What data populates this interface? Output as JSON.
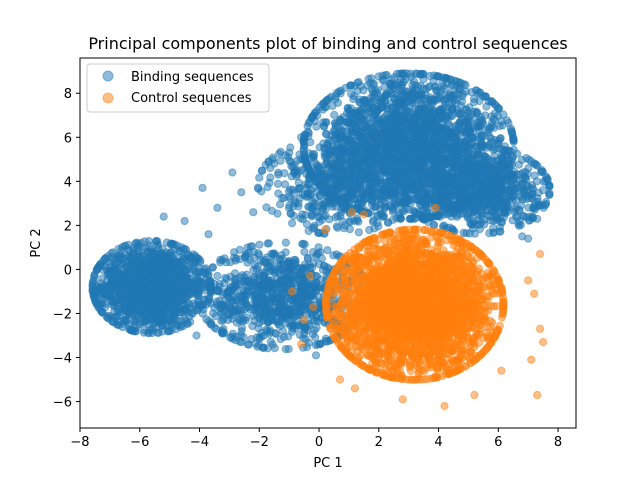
{
  "chart_data": {
    "type": "scatter",
    "title": "Principal components plot of binding and control sequences",
    "xlabel": "PC 1",
    "ylabel": "PC 2",
    "xlim": [
      -8,
      8.6
    ],
    "ylim": [
      -7.2,
      9.6
    ],
    "xticks": [
      -8,
      -6,
      -4,
      -2,
      0,
      2,
      4,
      6,
      8
    ],
    "yticks": [
      -6,
      -4,
      -2,
      0,
      2,
      4,
      6,
      8
    ],
    "grid": false,
    "legend_position": "top-left",
    "series": [
      {
        "name": "Binding sequences",
        "color": "#1f77b4",
        "opacity": 0.5,
        "clusters": [
          {
            "cx": -5.6,
            "cy": -0.8,
            "sx": 0.9,
            "sy": 0.95,
            "n": 1400
          },
          {
            "cx": -1.2,
            "cy": -1.2,
            "sx": 1.3,
            "sy": 1.1,
            "n": 900
          },
          {
            "cx": 3.0,
            "cy": 5.6,
            "sx": 1.6,
            "sy": 1.5,
            "n": 2200
          },
          {
            "cx": 5.3,
            "cy": 3.6,
            "sx": 1.1,
            "sy": 0.9,
            "n": 800
          },
          {
            "cx": 0.6,
            "cy": 3.8,
            "sx": 1.2,
            "sy": 1.0,
            "n": 500
          }
        ],
        "scatter_points": [
          [
            -3.9,
            3.7
          ],
          [
            -2.9,
            4.4
          ],
          [
            -2.6,
            3.5
          ],
          [
            -1.5,
            4.8
          ],
          [
            -1.0,
            5.3
          ],
          [
            -0.6,
            6.0
          ],
          [
            -2.2,
            2.6
          ],
          [
            -3.4,
            2.8
          ],
          [
            -4.5,
            2.2
          ],
          [
            -5.2,
            2.4
          ],
          [
            -2.0,
            -3.1
          ],
          [
            -3.2,
            -2.7
          ],
          [
            -0.1,
            -3.9
          ],
          [
            7.5,
            3.6
          ],
          [
            7.3,
            2.3
          ],
          [
            7.0,
            1.4
          ],
          [
            6.8,
            1.5
          ],
          [
            7.1,
            4.9
          ],
          [
            6.2,
            2.6
          ],
          [
            -7.0,
            0.1
          ],
          [
            -4.1,
            -3.0
          ],
          [
            -1.6,
            0.7
          ],
          [
            -0.9,
            2.1
          ],
          [
            -3.7,
            1.6
          ]
        ]
      },
      {
        "name": "Control sequences",
        "color": "#ff7f0e",
        "opacity": 0.5,
        "clusters": [
          {
            "cx": 3.2,
            "cy": -1.6,
            "sx": 1.35,
            "sy": 1.55,
            "n": 3000
          }
        ],
        "scatter_points": [
          [
            -0.9,
            -1.0
          ],
          [
            -0.6,
            -3.4
          ],
          [
            -0.2,
            -1.7
          ],
          [
            0.7,
            -5.0
          ],
          [
            1.2,
            -5.4
          ],
          [
            2.8,
            -5.9
          ],
          [
            4.2,
            -6.2
          ],
          [
            5.2,
            -5.7
          ],
          [
            6.1,
            -4.6
          ],
          [
            7.1,
            -4.1
          ],
          [
            7.4,
            -2.7
          ],
          [
            7.5,
            -3.3
          ],
          [
            7.2,
            -1.1
          ],
          [
            7.4,
            0.7
          ],
          [
            7.0,
            -0.5
          ],
          [
            1.1,
            2.6
          ],
          [
            3.9,
            2.8
          ],
          [
            1.5,
            2.5
          ],
          [
            0.2,
            1.8
          ],
          [
            -0.3,
            -0.3
          ],
          [
            7.3,
            -5.7
          ],
          [
            -0.5,
            -2.3
          ]
        ]
      }
    ]
  }
}
